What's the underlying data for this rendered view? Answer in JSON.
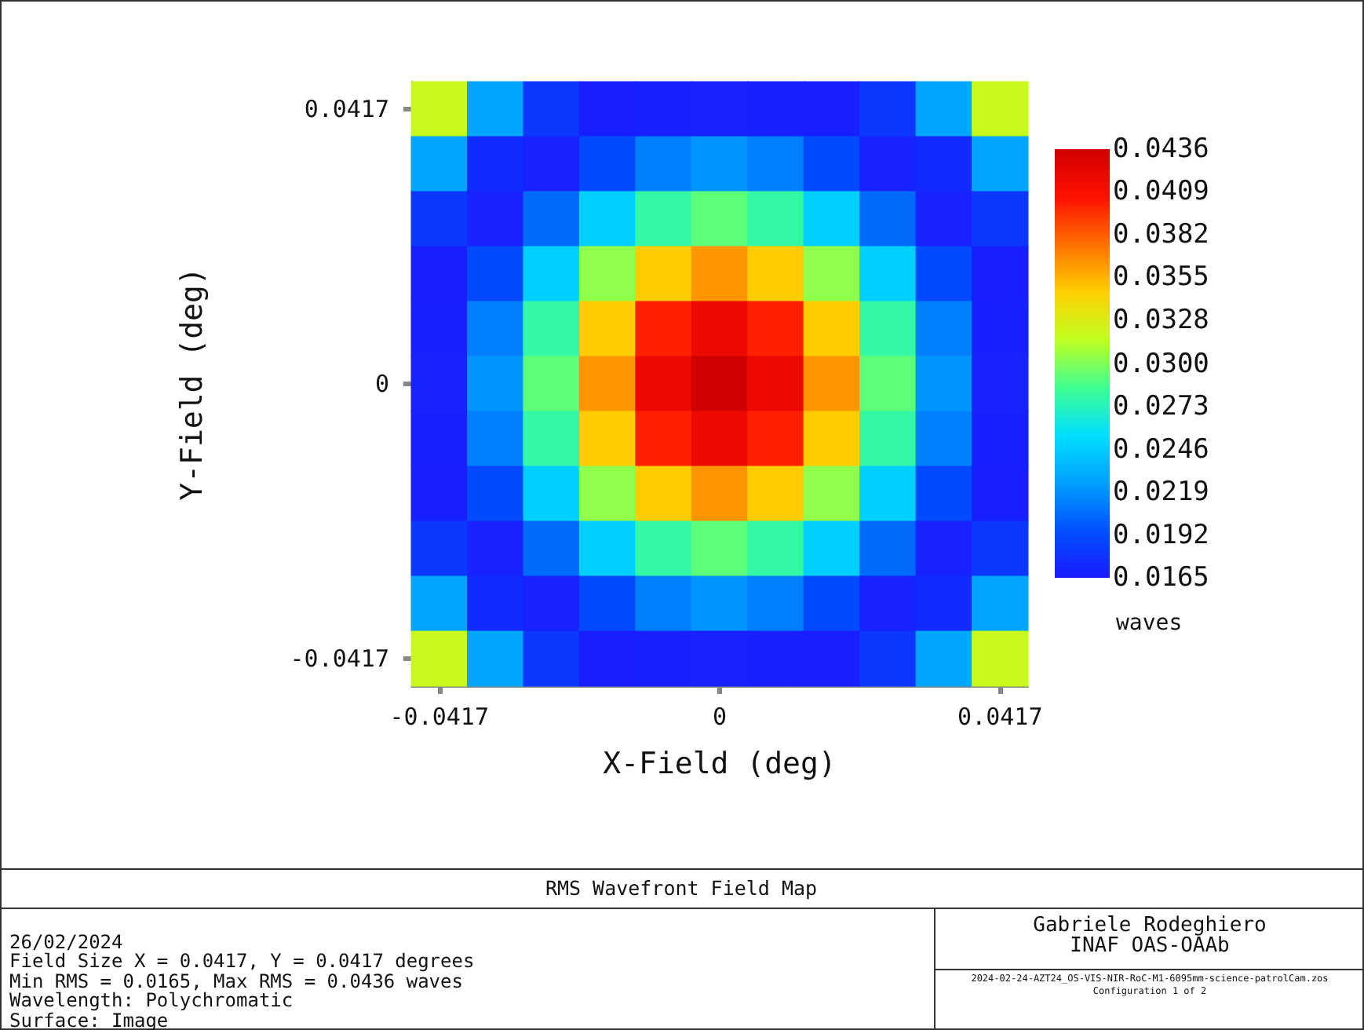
{
  "chart_data": {
    "type": "heatmap",
    "title": "RMS Wavefront Field Map",
    "xlabel": "X-Field (deg)",
    "ylabel": "Y-Field (deg)",
    "clabel": "waves",
    "categories": [
      "-0.0417",
      null,
      null,
      null,
      null,
      "0",
      null,
      null,
      null,
      null,
      "0.0417"
    ],
    "y_categories": [
      "0.0417",
      null,
      null,
      null,
      null,
      "0",
      null,
      null,
      null,
      null,
      "-0.0417"
    ],
    "clim": [
      0.0165,
      0.0436
    ],
    "cticks": [
      0.0165,
      0.0192,
      0.0219,
      0.0246,
      0.0273,
      {
        "value": 0.03,
        "label": "0.0300"
      },
      0.0328,
      0.0355,
      0.0382,
      0.0409,
      0.0436
    ],
    "cells": [
      [
        0.0319,
        0.0228,
        0.0181,
        0.0168,
        0.0169,
        0.017,
        0.0169,
        0.0168,
        0.0181,
        0.0228,
        0.0319
      ],
      [
        0.0228,
        0.0174,
        0.017,
        0.0192,
        0.0213,
        0.0221,
        0.0213,
        0.0192,
        0.017,
        0.0174,
        0.0228
      ],
      [
        0.0181,
        0.017,
        0.0205,
        0.0248,
        0.028,
        0.0292,
        0.028,
        0.0248,
        0.0205,
        0.017,
        0.0181
      ],
      [
        0.0168,
        0.0192,
        0.0248,
        0.0304,
        0.0347,
        0.0364,
        0.0347,
        0.0304,
        0.0248,
        0.0192,
        0.0168
      ],
      [
        0.0169,
        0.0213,
        0.028,
        0.0347,
        0.0401,
        0.0418,
        0.0401,
        0.0347,
        0.028,
        0.0213,
        0.0169
      ],
      [
        0.017,
        0.0221,
        0.0292,
        0.0364,
        0.0418,
        0.0436,
        0.0418,
        0.0364,
        0.0292,
        0.0221,
        0.017
      ],
      [
        0.0169,
        0.0213,
        0.028,
        0.0347,
        0.0401,
        0.0418,
        0.0401,
        0.0347,
        0.028,
        0.0213,
        0.0169
      ],
      [
        0.0168,
        0.0192,
        0.0248,
        0.0304,
        0.0347,
        0.0364,
        0.0347,
        0.0304,
        0.0248,
        0.0192,
        0.0168
      ],
      [
        0.0181,
        0.017,
        0.0205,
        0.0248,
        0.028,
        0.0292,
        0.028,
        0.0248,
        0.0205,
        0.017,
        0.0181
      ],
      [
        0.0228,
        0.0174,
        0.017,
        0.0192,
        0.0213,
        0.0221,
        0.0213,
        0.0192,
        0.017,
        0.0174,
        0.0228
      ],
      [
        0.0319,
        0.0228,
        0.0181,
        0.0168,
        0.0169,
        0.017,
        0.0169,
        0.0168,
        0.0181,
        0.0228,
        0.0319
      ]
    ],
    "annotations": [
      "26/02/2024",
      "Field Size X = 0.0417, Y = 0.0417 degrees",
      "Min RMS = 0.0165, Max RMS = 0.0436 waves",
      "Wavelength: Polychromatic",
      "Surface: Image",
      "Gabriele Rodeghiero",
      "INAF OAS-OAAb",
      "2024-02-24-AZT24_OS-VIS-NIR-RoC-M1-6095mm-science-patrolCam.zos",
      "Configuration 1 of 2"
    ]
  }
}
